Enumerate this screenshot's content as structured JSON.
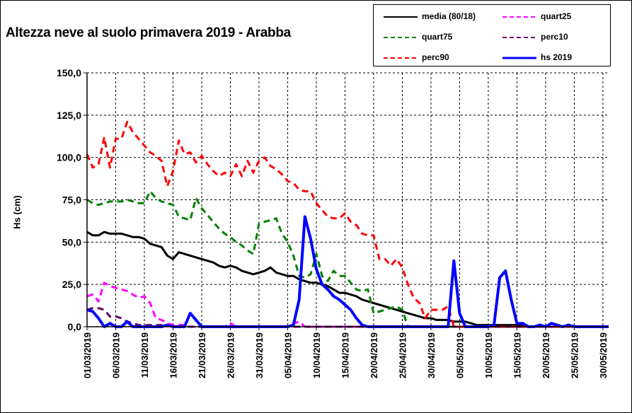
{
  "chart_data": {
    "type": "line",
    "title": "Altezza neve al suolo primavera 2019 - Arabba",
    "ylabel": "Hs (cm)",
    "xlabel": "",
    "ylim": [
      0,
      150
    ],
    "yticks": [
      "0,0",
      "25,0",
      "50,0",
      "75,0",
      "100,0",
      "125,0",
      "150,0"
    ],
    "x_start": "01/03/2019",
    "x_labels": [
      "01/03/2019",
      "06/03/2019",
      "11/03/2019",
      "16/03/2019",
      "21/03/2019",
      "26/03/2019",
      "31/03/2019",
      "05/04/2019",
      "10/04/2019",
      "15/04/2019",
      "20/04/2019",
      "25/04/2019",
      "30/04/2019",
      "05/05/2019",
      "10/05/2019",
      "15/05/2019",
      "20/05/2019",
      "25/05/2019",
      "30/05/2019"
    ],
    "grid": true,
    "legend_position": "top-right",
    "series": [
      {
        "name": "media (80/18)",
        "color": "#000000",
        "dash": false,
        "width": 3,
        "values": [
          56,
          54,
          54,
          56,
          55,
          55,
          55,
          54,
          53,
          53,
          52,
          49,
          48,
          47,
          42,
          40,
          44,
          43,
          42,
          41,
          40,
          39,
          38,
          36,
          35,
          36,
          35,
          33,
          32,
          31,
          32,
          33,
          35,
          32,
          31,
          30,
          30,
          28,
          27,
          26,
          26,
          25,
          24,
          22,
          20,
          20,
          19,
          18,
          16,
          15,
          14,
          13,
          12,
          11,
          10,
          9,
          8,
          7,
          6,
          5,
          5,
          4,
          4,
          4,
          3,
          3,
          3,
          2,
          1,
          1,
          1,
          1,
          1,
          1,
          1,
          1,
          1,
          0,
          0,
          0,
          0,
          0,
          0,
          0,
          0,
          0,
          0,
          0,
          0,
          0,
          0,
          0
        ]
      },
      {
        "name": "quart25",
        "color": "#ff00ff",
        "dash": true,
        "width": 3,
        "values": [
          18,
          19,
          15,
          26,
          24,
          23,
          22,
          21,
          19,
          17,
          18,
          14,
          5,
          4,
          2,
          1,
          1,
          1,
          0,
          0,
          0,
          0,
          0,
          0,
          0,
          2,
          0,
          0,
          0,
          0,
          0,
          0,
          0,
          0,
          0,
          0,
          2,
          3,
          0,
          0,
          0,
          0,
          0,
          0,
          0,
          0,
          0,
          0,
          0,
          0,
          0,
          0,
          0,
          0,
          0,
          0,
          0,
          0,
          0,
          0,
          0,
          0,
          0,
          0,
          0,
          0,
          0,
          0,
          0,
          0,
          0,
          0,
          0,
          0,
          0,
          0,
          0,
          0,
          0,
          0,
          0,
          0,
          0,
          0,
          0,
          0,
          0,
          0,
          0,
          0,
          0,
          0
        ]
      },
      {
        "name": "quart75",
        "color": "#008000",
        "dash": true,
        "width": 3,
        "values": [
          75,
          73,
          72,
          73,
          74,
          74,
          74,
          75,
          74,
          73,
          73,
          80,
          76,
          74,
          73,
          72,
          65,
          64,
          63,
          76,
          70,
          66,
          62,
          58,
          55,
          53,
          50,
          48,
          45,
          43,
          61,
          62,
          63,
          64,
          55,
          50,
          42,
          30,
          29,
          31,
          43,
          30,
          27,
          33,
          30,
          30,
          26,
          22,
          21,
          22,
          8,
          9,
          10,
          11,
          12,
          10,
          0,
          0,
          0,
          0,
          0,
          0,
          0,
          0,
          0,
          0,
          0,
          0,
          0,
          0,
          0,
          0,
          0,
          0,
          0,
          0,
          0,
          0,
          0,
          0,
          0,
          0,
          0,
          0,
          0,
          0,
          0,
          0,
          0,
          0,
          0,
          0
        ]
      },
      {
        "name": "perc10",
        "color": "#660066",
        "dash": true,
        "width": 3,
        "values": [
          10,
          11,
          11,
          10,
          6,
          6,
          5,
          3,
          2,
          1,
          1,
          1,
          1,
          1,
          1,
          0,
          0,
          0,
          0,
          0,
          0,
          0,
          0,
          0,
          0,
          0,
          0,
          0,
          0,
          0,
          0,
          0,
          0,
          0,
          0,
          0,
          0,
          0,
          0,
          0,
          0,
          0,
          0,
          0,
          0,
          0,
          0,
          0,
          0,
          0,
          0,
          0,
          0,
          0,
          0,
          0,
          0,
          0,
          0,
          0,
          0,
          0,
          0,
          0,
          0,
          0,
          0,
          0,
          0,
          0,
          0,
          0,
          0,
          0,
          0,
          0,
          0,
          0,
          0,
          0,
          0,
          0,
          0,
          0,
          0,
          0,
          0,
          0,
          0,
          0,
          0,
          0
        ]
      },
      {
        "name": "perc90",
        "color": "#ff0000",
        "dash": true,
        "width": 3,
        "values": [
          102,
          94,
          96,
          112,
          94,
          111,
          111,
          121,
          115,
          111,
          107,
          103,
          101,
          98,
          83,
          92,
          110,
          102,
          103,
          97,
          101,
          96,
          92,
          89,
          91,
          89,
          96,
          89,
          98,
          91,
          98,
          100,
          95,
          93,
          90,
          86,
          85,
          81,
          80,
          80,
          73,
          69,
          65,
          64,
          64,
          67,
          62,
          60,
          55,
          54,
          54,
          40,
          40,
          36,
          40,
          35,
          25,
          17,
          14,
          5,
          10,
          10,
          10,
          12,
          0,
          0,
          0,
          0,
          0,
          0,
          0,
          0,
          0,
          0,
          0,
          0,
          0,
          0,
          0,
          0,
          0,
          0,
          0,
          0,
          0,
          0,
          0,
          0,
          0,
          0,
          0,
          0
        ]
      },
      {
        "name": "hs 2019",
        "color": "#0000ff",
        "dash": false,
        "width": 4,
        "values": [
          10,
          9,
          5,
          0,
          2,
          0,
          0,
          3,
          0,
          0,
          0,
          0,
          0,
          0,
          1,
          0,
          0,
          0,
          8,
          4,
          0,
          0,
          0,
          0,
          0,
          0,
          0,
          0,
          0,
          0,
          0,
          0,
          0,
          0,
          0,
          0,
          1,
          16,
          65,
          52,
          34,
          25,
          22,
          18,
          16,
          13,
          10,
          5,
          1,
          0,
          0,
          0,
          0,
          0,
          0,
          0,
          0,
          0,
          0,
          0,
          0,
          0,
          0,
          0,
          39,
          8,
          0,
          0,
          0,
          0,
          0,
          1,
          29,
          33,
          16,
          2,
          2,
          0,
          0,
          1,
          0,
          2,
          1,
          0,
          1,
          0,
          0,
          0,
          0,
          0,
          0,
          0
        ]
      }
    ]
  }
}
